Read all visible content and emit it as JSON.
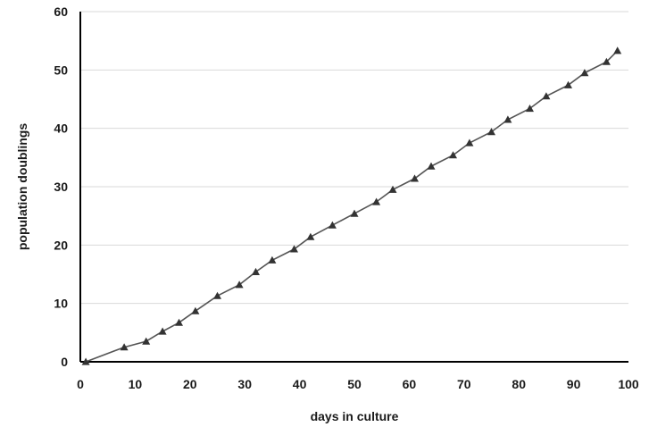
{
  "chart_data": {
    "type": "line",
    "title": "",
    "xlabel": "days in culture",
    "ylabel": "population doublings",
    "xlim": [
      0,
      100
    ],
    "ylim": [
      0,
      60
    ],
    "x_ticks": [
      0,
      10,
      20,
      30,
      40,
      50,
      60,
      70,
      80,
      90,
      100
    ],
    "y_ticks": [
      0,
      10,
      20,
      30,
      40,
      50,
      60
    ],
    "grid": "horizontal",
    "legend": "none",
    "marker": "triangle",
    "colors": {
      "line": "#555555",
      "marker": "#333333",
      "grid": "#d9d9d9",
      "axis": "#000000"
    },
    "series": [
      {
        "x": [
          1,
          8,
          12,
          15,
          18,
          21,
          25,
          29,
          32,
          35,
          39,
          42,
          46,
          50,
          54,
          57,
          61,
          64,
          68,
          71,
          75,
          78,
          82,
          85,
          89,
          92,
          96,
          98
        ],
        "y": [
          0,
          2.5,
          3.5,
          5.2,
          6.7,
          8.7,
          11.3,
          13.2,
          15.4,
          17.4,
          19.3,
          21.4,
          23.4,
          25.4,
          27.4,
          29.5,
          31.4,
          33.5,
          35.4,
          37.5,
          39.4,
          41.5,
          43.4,
          45.5,
          47.4,
          49.5,
          51.4,
          53.3
        ]
      }
    ]
  }
}
